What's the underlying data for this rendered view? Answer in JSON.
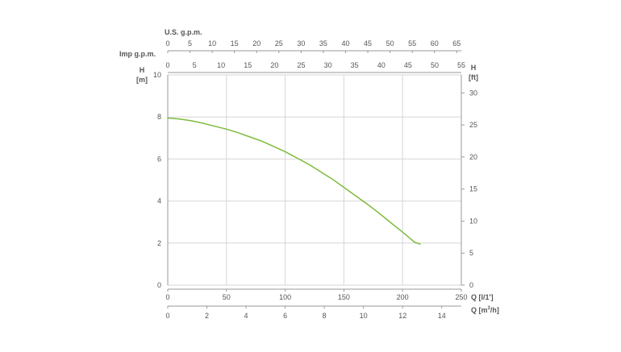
{
  "chart_data": {
    "type": "line",
    "series": [
      {
        "color": "#7dbb3c",
        "points": [
          {
            "x": 0,
            "y": 7.95
          },
          {
            "x": 10,
            "y": 7.9
          },
          {
            "x": 20,
            "y": 7.82
          },
          {
            "x": 30,
            "y": 7.7
          },
          {
            "x": 40,
            "y": 7.56
          },
          {
            "x": 50,
            "y": 7.42
          },
          {
            "x": 60,
            "y": 7.25
          },
          {
            "x": 70,
            "y": 7.05
          },
          {
            "x": 80,
            "y": 6.85
          },
          {
            "x": 90,
            "y": 6.6
          },
          {
            "x": 100,
            "y": 6.35
          },
          {
            "x": 110,
            "y": 6.05
          },
          {
            "x": 120,
            "y": 5.75
          },
          {
            "x": 130,
            "y": 5.4
          },
          {
            "x": 140,
            "y": 5.05
          },
          {
            "x": 150,
            "y": 4.65
          },
          {
            "x": 160,
            "y": 4.25
          },
          {
            "x": 170,
            "y": 3.85
          },
          {
            "x": 180,
            "y": 3.42
          },
          {
            "x": 190,
            "y": 2.97
          },
          {
            "x": 200,
            "y": 2.52
          },
          {
            "x": 210,
            "y": 2.05
          },
          {
            "x": 215,
            "y": 1.95
          }
        ]
      }
    ],
    "axes": {
      "left": {
        "label_line1": "H",
        "label_line2": "[m]",
        "min": 0,
        "max": 10,
        "ticks": [
          "0",
          "2",
          "4",
          "6",
          "8",
          "10"
        ]
      },
      "right": {
        "label_line1": "H",
        "label_line2": "[ft]",
        "min": 0,
        "max": 32.8,
        "ticks": [
          "0",
          "5",
          "10",
          "15",
          "20",
          "25",
          "30"
        ]
      },
      "bottom1": {
        "label": "Q  [l/1']",
        "min": 0,
        "max": 250,
        "ticks": [
          "0",
          "50",
          "100",
          "150",
          "200",
          "250"
        ]
      },
      "bottom2": {
        "label": "Q  [m",
        "label_sup": "3",
        "label_end": "/h]",
        "min": 0,
        "max": 15,
        "ticks": [
          "0",
          "2",
          "4",
          "6",
          "8",
          "10",
          "12",
          "14"
        ]
      },
      "top_usgpm": {
        "label": "U.S. g.p.m.",
        "min": 0,
        "max": 66.04,
        "ticks": [
          "0",
          "5",
          "10",
          "15",
          "20",
          "25",
          "30",
          "35",
          "40",
          "45",
          "50",
          "55",
          "60",
          "65"
        ]
      },
      "top_impgpm": {
        "label": "Imp g.p.m.",
        "min": 0,
        "max": 54.99,
        "ticks": [
          "0",
          "5",
          "10",
          "15",
          "20",
          "25",
          "30",
          "35",
          "40",
          "45",
          "50",
          "55"
        ]
      }
    },
    "grid": true
  }
}
